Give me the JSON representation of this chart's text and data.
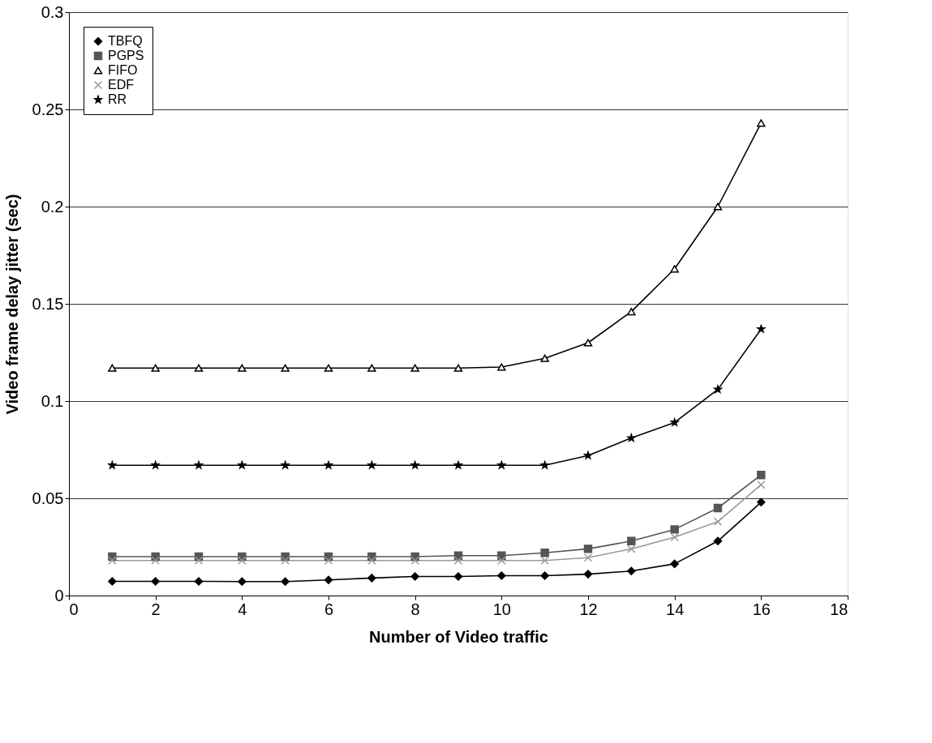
{
  "chart_data": {
    "type": "line",
    "xlabel": "Number of Video traffic",
    "ylabel": "Video frame delay jitter (sec)",
    "x": [
      1,
      2,
      3,
      4,
      5,
      6,
      7,
      8,
      9,
      10,
      11,
      12,
      13,
      14,
      15,
      16
    ],
    "series": [
      {
        "name": "TBFQ",
        "color": "#000000",
        "marker": "diamond",
        "values": [
          0.0073,
          0.0073,
          0.0073,
          0.0072,
          0.0072,
          0.008,
          0.009,
          0.0098,
          0.0098,
          0.0102,
          0.0102,
          0.011,
          0.0126,
          0.0163,
          0.028,
          0.048
        ]
      },
      {
        "name": "PGPS",
        "color": "#555555",
        "marker": "square",
        "values": [
          0.02,
          0.02,
          0.02,
          0.02,
          0.02,
          0.02,
          0.02,
          0.02,
          0.0205,
          0.0205,
          0.022,
          0.024,
          0.028,
          0.034,
          0.045,
          0.062
        ]
      },
      {
        "name": "FIFO",
        "color": "#000000",
        "marker": "triangle",
        "values": [
          0.117,
          0.117,
          0.117,
          0.117,
          0.117,
          0.117,
          0.117,
          0.117,
          0.117,
          0.1175,
          0.122,
          0.13,
          0.146,
          0.168,
          0.2,
          0.243
        ]
      },
      {
        "name": "EDF",
        "color": "#999999",
        "marker": "cross",
        "values": [
          0.018,
          0.018,
          0.018,
          0.018,
          0.018,
          0.018,
          0.018,
          0.018,
          0.018,
          0.018,
          0.018,
          0.0195,
          0.024,
          0.03,
          0.038,
          0.057
        ]
      },
      {
        "name": "RR",
        "color": "#000000",
        "marker": "star",
        "values": [
          0.067,
          0.067,
          0.067,
          0.067,
          0.067,
          0.067,
          0.067,
          0.067,
          0.067,
          0.067,
          0.067,
          0.072,
          0.081,
          0.089,
          0.106,
          0.137
        ]
      }
    ],
    "xlim": [
      0,
      18
    ],
    "xticks": [
      0,
      2,
      4,
      6,
      8,
      10,
      12,
      14,
      16,
      18
    ],
    "ylim": [
      0,
      0.3
    ],
    "yticks": [
      0,
      0.05,
      0.1,
      0.15,
      0.2,
      0.25,
      0.3
    ],
    "grid": "y",
    "legend": "top left",
    "line_style": "solid"
  }
}
